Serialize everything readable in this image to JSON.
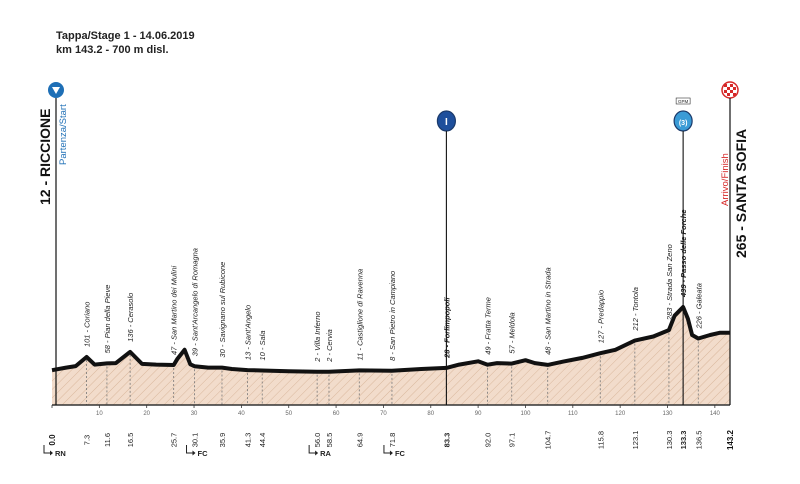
{
  "header": {
    "line1": "Tappa/Stage 1 - 14.06.2019",
    "line2": "km 143.2 - 700 m disl."
  },
  "start": {
    "name": "12 - RICCIONE",
    "label": "Partenza/Start",
    "icon": "start-arrow-icon",
    "color": "#1e6fb6"
  },
  "finish": {
    "name": "265 - SANTA SOFIA",
    "label": "Arrivo/Finish",
    "icon": "checkered-flag-icon",
    "color": "#d62828"
  },
  "markers": [
    {
      "km": 83.3,
      "symbol": "I",
      "name": "sprint-marker-icon",
      "color": "#1e4f9c"
    },
    {
      "km": 133.3,
      "symbol": "(3)",
      "name": "gpm-marker-icon",
      "color": "#3a9bd6",
      "badge": "GPM"
    }
  ],
  "traffic": [
    {
      "km": 0.0,
      "label": "RN"
    },
    {
      "km": 30.1,
      "label": "FC"
    },
    {
      "km": 56.0,
      "label": "RA"
    },
    {
      "km": 71.8,
      "label": "FC"
    }
  ],
  "colors": {
    "profile_fill": "#f2dccb",
    "profile_hatch": "#d9b79c",
    "profile_line": "#111111",
    "vlines": "#777777",
    "base": "#333333"
  },
  "chart_data": {
    "type": "area",
    "title": "",
    "xlabel": "",
    "ylabel": "",
    "xlim": [
      0,
      143.2
    ],
    "ylim": [
      0,
      439
    ],
    "x_ticks": [
      0,
      10,
      20,
      30,
      40,
      50,
      60,
      70,
      80,
      90,
      100,
      110,
      120,
      130,
      140
    ],
    "profile": [
      [
        0,
        12
      ],
      [
        3,
        30
      ],
      [
        5,
        40
      ],
      [
        7.3,
        101
      ],
      [
        9,
        50
      ],
      [
        11.6,
        58
      ],
      [
        13.5,
        60
      ],
      [
        16.5,
        136
      ],
      [
        19,
        55
      ],
      [
        22,
        50
      ],
      [
        25.7,
        47
      ],
      [
        26.5,
        90
      ],
      [
        28,
        150
      ],
      [
        29.2,
        52
      ],
      [
        30.1,
        39
      ],
      [
        33,
        30
      ],
      [
        35.9,
        30
      ],
      [
        38,
        20
      ],
      [
        41.3,
        13
      ],
      [
        44.4,
        10
      ],
      [
        50,
        5
      ],
      [
        56,
        2
      ],
      [
        58.5,
        2
      ],
      [
        64.9,
        11
      ],
      [
        71.8,
        8
      ],
      [
        78,
        20
      ],
      [
        83.3,
        28
      ],
      [
        86,
        50
      ],
      [
        90,
        72
      ],
      [
        92,
        49
      ],
      [
        94,
        60
      ],
      [
        97.1,
        57
      ],
      [
        100,
        80
      ],
      [
        102,
        60
      ],
      [
        104.7,
        48
      ],
      [
        108,
        70
      ],
      [
        112,
        95
      ],
      [
        115.8,
        127
      ],
      [
        119,
        150
      ],
      [
        123.1,
        212
      ],
      [
        127,
        240
      ],
      [
        130.3,
        283
      ],
      [
        131.5,
        380
      ],
      [
        133.3,
        439
      ],
      [
        134.3,
        360
      ],
      [
        135.2,
        250
      ],
      [
        136.5,
        226
      ],
      [
        139,
        250
      ],
      [
        141,
        265
      ],
      [
        143.2,
        265
      ]
    ],
    "points": [
      {
        "km": 7.3,
        "alt": 101,
        "name": "Coriano"
      },
      {
        "km": 11.6,
        "alt": 58,
        "name": "Pian della Pieve"
      },
      {
        "km": 16.5,
        "alt": 136,
        "name": "Cerasolo"
      },
      {
        "km": 25.7,
        "alt": 47,
        "name": "San Martino dei Mulini"
      },
      {
        "km": 30.1,
        "alt": 39,
        "name": "Sant'Arcangelo di Romagna"
      },
      {
        "km": 35.9,
        "alt": 30,
        "name": "Savignano sul Rubicone"
      },
      {
        "km": 41.3,
        "alt": 13,
        "name": "Sant'Angelo"
      },
      {
        "km": 44.4,
        "alt": 10,
        "name": "Sala"
      },
      {
        "km": 56.0,
        "alt": 2,
        "name": "Villa Inferno"
      },
      {
        "km": 58.5,
        "alt": 2,
        "name": "Cervia"
      },
      {
        "km": 64.9,
        "alt": 11,
        "name": "Castiglione di Ravenna"
      },
      {
        "km": 71.8,
        "alt": 8,
        "name": "San Pietro in Campiano"
      },
      {
        "km": 83.3,
        "alt": 28,
        "name": "Forlimpopoli",
        "bold": true
      },
      {
        "km": 92.0,
        "alt": 49,
        "name": "Fratta Terme"
      },
      {
        "km": 97.1,
        "alt": 57,
        "name": "Meldola"
      },
      {
        "km": 104.7,
        "alt": 48,
        "name": "San Martino in Strada"
      },
      {
        "km": 115.8,
        "alt": 127,
        "name": "Predappio"
      },
      {
        "km": 123.1,
        "alt": 212,
        "name": "Tontola"
      },
      {
        "km": 130.3,
        "alt": 283,
        "name": "Strada San Zeno"
      },
      {
        "km": 133.3,
        "alt": 439,
        "name": "Passo delle Forche",
        "bold": true
      },
      {
        "km": 136.5,
        "alt": 226,
        "name": "Galeata"
      }
    ],
    "start_label": {
      "km": 0.0,
      "text": "0.0"
    },
    "finish_label": {
      "km": 143.2,
      "text": "143.2"
    }
  }
}
